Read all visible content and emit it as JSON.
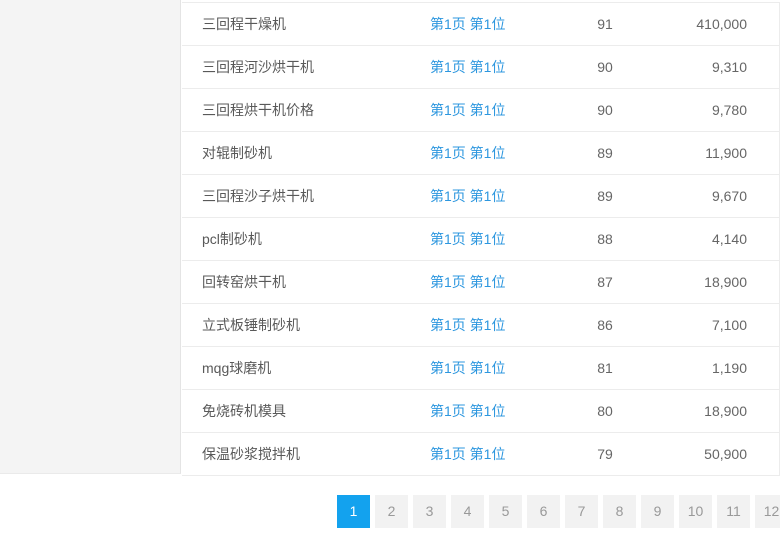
{
  "table": {
    "rows": [
      {
        "keyword": "三回程干燥机",
        "position": "第1页 第1位",
        "score": "91",
        "volume": "410,000"
      },
      {
        "keyword": "三回程河沙烘干机",
        "position": "第1页 第1位",
        "score": "90",
        "volume": "9,310"
      },
      {
        "keyword": "三回程烘干机价格",
        "position": "第1页 第1位",
        "score": "90",
        "volume": "9,780"
      },
      {
        "keyword": "对辊制砂机",
        "position": "第1页 第1位",
        "score": "89",
        "volume": "11,900"
      },
      {
        "keyword": "三回程沙子烘干机",
        "position": "第1页 第1位",
        "score": "89",
        "volume": "9,670"
      },
      {
        "keyword": "pcl制砂机",
        "position": "第1页 第1位",
        "score": "88",
        "volume": "4,140"
      },
      {
        "keyword": "回转窑烘干机",
        "position": "第1页 第1位",
        "score": "87",
        "volume": "18,900"
      },
      {
        "keyword": "立式板锤制砂机",
        "position": "第1页 第1位",
        "score": "86",
        "volume": "7,100"
      },
      {
        "keyword": "mqg球磨机",
        "position": "第1页 第1位",
        "score": "81",
        "volume": "1,190"
      },
      {
        "keyword": "免烧砖机模具",
        "position": "第1页 第1位",
        "score": "80",
        "volume": "18,900"
      },
      {
        "keyword": "保温砂浆搅拌机",
        "position": "第1页 第1位",
        "score": "79",
        "volume": "50,900"
      }
    ]
  },
  "pagination": {
    "pages": [
      "1",
      "2",
      "3",
      "4",
      "5",
      "6",
      "7",
      "8",
      "9",
      "10",
      "11",
      "12"
    ],
    "active_index": 0,
    "active_page": "1"
  },
  "colors": {
    "link_blue": "#2d97df",
    "active_page_bg": "#13a2ee",
    "sidebar_bg": "#f4f4f4"
  }
}
